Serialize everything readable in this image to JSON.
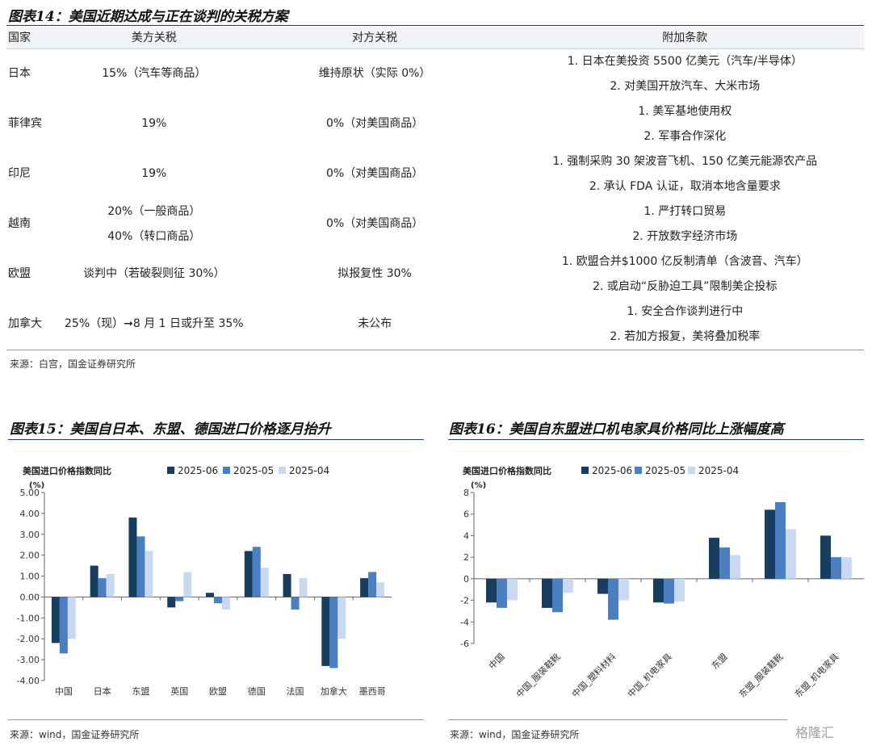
{
  "table": {
    "title": "图表14：美国近期达成与正在谈判的关税方案",
    "headers": [
      "国家",
      "美方关税",
      "对方关税",
      "附加条款"
    ],
    "rows": [
      {
        "country": "日本",
        "us": [
          "15%（汽车等商品）"
        ],
        "other": "维持原状（实际 0%）",
        "terms": [
          "1.  日本在美投资 5500 亿美元（汽车/半导体）",
          "2.  对美国开放汽车、大米市场"
        ]
      },
      {
        "country": "菲律宾",
        "us": [
          "19%"
        ],
        "other": "0%（对美国商品）",
        "terms": [
          "1.  美军基地使用权",
          "2.  军事合作深化"
        ]
      },
      {
        "country": "印尼",
        "us": [
          "19%"
        ],
        "other": "0%（对美国商品）",
        "terms": [
          "1.  强制采购 30 架波音飞机、150 亿美元能源农产品",
          "2.  承认 FDA 认证，取消本地含量要求"
        ]
      },
      {
        "country": "越南",
        "us": [
          "20%（一般商品）",
          "40%（转口商品）"
        ],
        "other": "0%（对美国商品）",
        "terms": [
          "1.  严打转口贸易",
          "2.  开放数字经济市场"
        ]
      },
      {
        "country": "欧盟",
        "us": [
          "谈判中（若破裂则征 30%）"
        ],
        "other": "拟报复性 30%",
        "terms": [
          "1.  欧盟合并$1000 亿反制清单（含波音、汽车）",
          "2.  或启动“反胁迫工具”限制美企投标"
        ]
      },
      {
        "country": "加拿大",
        "us": [
          "25%（现）➞8 月 1 日或升至 35%"
        ],
        "other": "未公布",
        "terms": [
          "1.  安全合作谈判进行中",
          "2.  若加方报复，美将叠加税率"
        ]
      }
    ],
    "source": "来源：白宫，国金证券研究所"
  },
  "chart15": {
    "title": "图表15：美国自日本、东盟、德国进口价格逐月抬升",
    "source": "来源：wind，国金证券研究所"
  },
  "chart16": {
    "title": "图表16：美国自东盟进口机电家具价格同比上涨幅度高",
    "source": "来源：wind，国金证券研究所"
  },
  "watermark": "格隆汇",
  "colors": [
    "#173d5f",
    "#4a7fc1",
    "#c9daf0"
  ],
  "chart_data": [
    {
      "type": "bar",
      "title": "图表15：美国自日本、东盟、德国进口价格逐月抬升",
      "ylabel": "美国进口价格指数同比",
      "yunit": "(%)",
      "ylim": [
        -4,
        5
      ],
      "yticks": [
        "5.00",
        "4.00",
        "3.00",
        "2.00",
        "1.00",
        "0.00",
        "-1.00",
        "-2.00",
        "-3.00",
        "-4.00"
      ],
      "categories": [
        "中国",
        "日本",
        "东盟",
        "英国",
        "欧盟",
        "德国",
        "法国",
        "加拿大",
        "墨西哥"
      ],
      "series": [
        {
          "name": "2025-06",
          "values": [
            -2.2,
            1.5,
            3.8,
            -0.5,
            0.2,
            2.2,
            1.1,
            -3.3,
            0.9
          ]
        },
        {
          "name": "2025-05",
          "values": [
            -2.7,
            0.9,
            2.9,
            -0.2,
            -0.3,
            2.4,
            -0.6,
            -3.4,
            1.2
          ]
        },
        {
          "name": "2025-04",
          "values": [
            -2.0,
            1.1,
            2.2,
            1.2,
            -0.6,
            1.4,
            0.9,
            -2.0,
            0.7
          ]
        }
      ],
      "legend": "top"
    },
    {
      "type": "bar",
      "title": "图表16：美国自东盟进口机电家具价格同比上涨幅度高",
      "ylabel": "美国进口价格指数同比",
      "yunit": "(%)",
      "ylim": [
        -6,
        8
      ],
      "yticks": [
        "8",
        "6",
        "4",
        "2",
        "0",
        "-2",
        "-4",
        "-6"
      ],
      "categories": [
        "中国",
        "中国_服装鞋靴",
        "中国_塑料材料",
        "中国_机电家具",
        "东盟",
        "东盟_服装鞋靴",
        "东盟_机电家具"
      ],
      "series": [
        {
          "name": "2025-06",
          "values": [
            -2.2,
            -2.7,
            -1.4,
            -2.2,
            3.8,
            6.4,
            4.0
          ]
        },
        {
          "name": "2025-05",
          "values": [
            -2.7,
            -3.1,
            -3.8,
            -2.3,
            2.9,
            7.1,
            2.0
          ]
        },
        {
          "name": "2025-04",
          "values": [
            -2.0,
            -1.3,
            -2.0,
            -2.1,
            2.2,
            4.6,
            2.0
          ]
        }
      ],
      "legend": "top"
    }
  ]
}
